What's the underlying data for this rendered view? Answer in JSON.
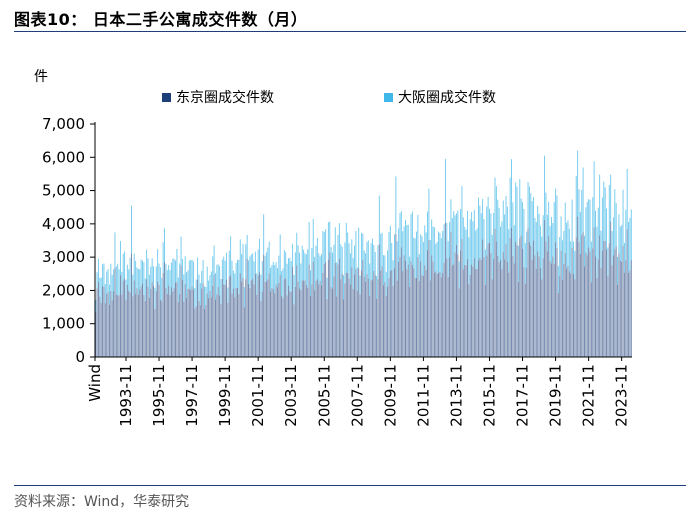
{
  "header": {
    "title": "图表10：  日本二手公寓成交件数（月）"
  },
  "footer": {
    "source": "资料来源：Wind，华泰研究"
  },
  "chart_data": {
    "type": "bar",
    "stacked": true,
    "title": "日本二手公寓成交件数（月）",
    "ylabel": "件",
    "xlabel": "",
    "ylim": [
      0,
      7000
    ],
    "yticks": [
      "0",
      "1,000",
      "2,000",
      "3,000",
      "4,000",
      "5,000",
      "6,000",
      "7,000"
    ],
    "xticks": [
      "Wind",
      "1993-11",
      "1995-11",
      "1997-11",
      "1999-11",
      "2001-11",
      "2003-11",
      "2005-11",
      "2007-11",
      "2009-11",
      "2011-11",
      "2013-11",
      "2015-11",
      "2017-11",
      "2019-11",
      "2021-11",
      "2023-11"
    ],
    "x_start": "1992-01",
    "x_end": "2024-06",
    "frequency": "monthly",
    "legend_position": "top",
    "grid": false,
    "colors": {
      "tokyo": "#1f3f7a",
      "osaka": "#3fb7e8"
    },
    "series": [
      {
        "name": "东京圈成交件数",
        "annual_typical": {
          "1992": 1900,
          "1993": 2050,
          "1994": 2150,
          "1995": 2000,
          "1996": 2150,
          "1997": 2050,
          "1998": 1850,
          "1999": 2050,
          "2000": 2150,
          "2001": 2200,
          "2002": 2250,
          "2003": 2300,
          "2004": 2350,
          "2005": 2450,
          "2006": 2500,
          "2007": 2400,
          "2008": 2250,
          "2009": 2550,
          "2010": 2750,
          "2011": 2650,
          "2012": 2800,
          "2013": 3150,
          "2014": 2950,
          "2015": 3000,
          "2016": 3150,
          "2017": 3100,
          "2018": 3100,
          "2019": 3100,
          "2020": 2800,
          "2021": 3350,
          "2022": 3050,
          "2023": 3000,
          "2024": 3000
        }
      },
      {
        "name": "大阪圈成交件数",
        "annual_typical": {
          "1992": 650,
          "1993": 800,
          "1994": 850,
          "1995": 750,
          "1996": 800,
          "1997": 750,
          "1998": 650,
          "1999": 750,
          "2000": 800,
          "2001": 850,
          "2002": 900,
          "2003": 950,
          "2004": 1000,
          "2005": 1000,
          "2006": 1000,
          "2007": 1000,
          "2008": 950,
          "2009": 1050,
          "2010": 1150,
          "2011": 1100,
          "2012": 1200,
          "2013": 1350,
          "2014": 1300,
          "2015": 1350,
          "2016": 1400,
          "2017": 1400,
          "2018": 1400,
          "2019": 1400,
          "2020": 1250,
          "2021": 1500,
          "2022": 1400,
          "2023": 1400,
          "2024": 1450
        },
        "peaks": [
          {
            "x": "1994-03",
            "total": 4550
          },
          {
            "x": "2013-03",
            "total": 5950
          },
          {
            "x": "2019-03",
            "total": 6050
          },
          {
            "x": "2021-03",
            "total": 6200
          },
          {
            "x": "2024-03",
            "total": 5650
          }
        ]
      }
    ]
  }
}
